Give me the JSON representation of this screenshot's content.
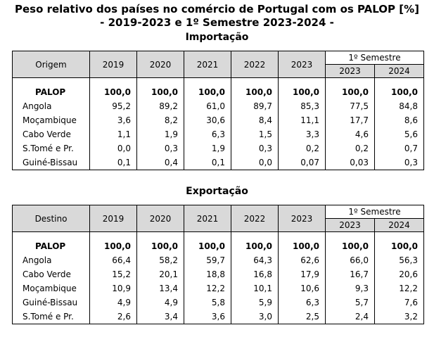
{
  "title": {
    "line1": "Peso relativo dos países no comércio de Portugal com os PALOP [%]",
    "line2": "- 2019-2023 e 1º Semestre 2023-2024 -"
  },
  "import": {
    "heading": "Importação",
    "first_col": "Origem",
    "years": [
      "2019",
      "2020",
      "2021",
      "2022",
      "2023"
    ],
    "semester_label": "1º Semestre",
    "semester_years": [
      "2023",
      "2024"
    ],
    "rows": [
      {
        "name": "PALOP",
        "values": [
          "100,0",
          "100,0",
          "100,0",
          "100,0",
          "100,0",
          "100,0",
          "100,0"
        ]
      },
      {
        "name": "Angola",
        "values": [
          "95,2",
          "89,2",
          "61,0",
          "89,7",
          "85,3",
          "77,5",
          "84,8"
        ]
      },
      {
        "name": "Moçambique",
        "values": [
          "3,6",
          "8,2",
          "30,6",
          "8,4",
          "11,1",
          "17,7",
          "8,6"
        ]
      },
      {
        "name": "Cabo Verde",
        "values": [
          "1,1",
          "1,9",
          "6,3",
          "1,5",
          "3,3",
          "4,6",
          "5,6"
        ]
      },
      {
        "name": "S.Tomé e Pr.",
        "values": [
          "0,0",
          "0,3",
          "1,9",
          "0,3",
          "0,2",
          "0,2",
          "0,7"
        ]
      },
      {
        "name": "Guiné-Bissau",
        "values": [
          "0,1",
          "0,4",
          "0,1",
          "0,0",
          "0,07",
          "0,03",
          "0,3"
        ]
      }
    ]
  },
  "export": {
    "heading": "Exportação",
    "first_col": "Destino",
    "years": [
      "2019",
      "2020",
      "2021",
      "2022",
      "2023"
    ],
    "semester_label": "1º Semestre",
    "semester_years": [
      "2023",
      "2024"
    ],
    "rows": [
      {
        "name": "PALOP",
        "values": [
          "100,0",
          "100,0",
          "100,0",
          "100,0",
          "100,0",
          "100,0",
          "100,0"
        ]
      },
      {
        "name": "Angola",
        "values": [
          "66,4",
          "58,2",
          "59,7",
          "64,3",
          "62,6",
          "66,0",
          "56,3"
        ]
      },
      {
        "name": "Cabo Verde",
        "values": [
          "15,2",
          "20,1",
          "18,8",
          "16,8",
          "17,9",
          "16,7",
          "20,6"
        ]
      },
      {
        "name": "Moçambique",
        "values": [
          "10,9",
          "13,4",
          "12,2",
          "10,1",
          "10,6",
          "9,3",
          "12,2"
        ]
      },
      {
        "name": "Guiné-Bissau",
        "values": [
          "4,9",
          "4,9",
          "5,8",
          "5,9",
          "6,3",
          "5,7",
          "7,6"
        ]
      },
      {
        "name": "S.Tomé e Pr.",
        "values": [
          "2,6",
          "3,4",
          "3,6",
          "3,0",
          "2,5",
          "2,4",
          "3,2"
        ]
      }
    ]
  },
  "colors": {
    "header_fill": "#d9d9d9",
    "border": "#000000"
  }
}
